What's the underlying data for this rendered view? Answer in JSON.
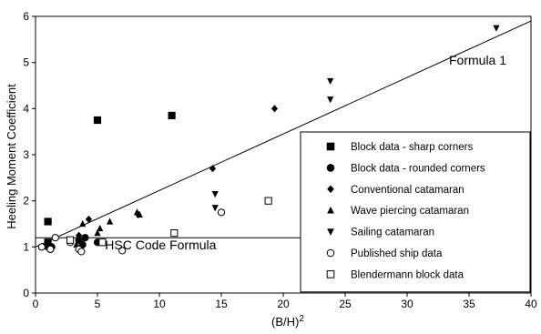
{
  "chart_data": {
    "type": "scatter",
    "title": "",
    "xlabel": "(B/H)",
    "xlabel_superscript": "2",
    "ylabel": "Heeling Moment Coefficient",
    "xlim": [
      0,
      40
    ],
    "ylim": [
      0,
      6
    ],
    "x_ticks": [
      "0",
      "5",
      "10",
      "15",
      "20",
      "25",
      "30",
      "35",
      "40"
    ],
    "y_ticks": [
      "0",
      "1",
      "2",
      "3",
      "4",
      "5",
      "6"
    ],
    "grid": false,
    "legend_position": "bottom-right",
    "series": [
      {
        "name": "Block data - sharp corners",
        "marker": "square-filled",
        "points": [
          [
            1.0,
            1.55
          ],
          [
            1.0,
            1.1
          ],
          [
            5.0,
            3.75
          ],
          [
            11.0,
            3.85
          ]
        ]
      },
      {
        "name": "Block data - rounded corners",
        "marker": "circle-filled",
        "points": [
          [
            1.0,
            1.0
          ],
          [
            1.0,
            1.05
          ],
          [
            1.2,
            0.95
          ],
          [
            1.3,
            1.0
          ],
          [
            3.5,
            1.15
          ],
          [
            3.8,
            1.05
          ],
          [
            4.0,
            1.2
          ],
          [
            5.0,
            1.1
          ]
        ]
      },
      {
        "name": "Conventional catamaran",
        "marker": "diamond-filled",
        "points": [
          [
            3.5,
            1.25
          ],
          [
            4.3,
            1.6
          ],
          [
            8.3,
            1.7
          ],
          [
            14.3,
            2.7
          ],
          [
            19.3,
            4.0
          ]
        ]
      },
      {
        "name": "Wave piercing catamaran",
        "marker": "triangle-up-filled",
        "points": [
          [
            3.3,
            1.05
          ],
          [
            3.8,
            1.5
          ],
          [
            5.0,
            1.3
          ],
          [
            5.2,
            1.4
          ],
          [
            6.0,
            1.55
          ],
          [
            8.2,
            1.75
          ],
          [
            8.4,
            1.7
          ]
        ]
      },
      {
        "name": "Sailing catamaran",
        "marker": "triangle-down-filled",
        "points": [
          [
            14.5,
            2.15
          ],
          [
            14.5,
            1.85
          ],
          [
            23.8,
            4.6
          ],
          [
            23.8,
            4.2
          ],
          [
            37.2,
            5.75
          ]
        ]
      },
      {
        "name": "Published ship data",
        "marker": "circle-open",
        "points": [
          [
            0.5,
            1.0
          ],
          [
            1.2,
            0.95
          ],
          [
            1.6,
            1.2
          ],
          [
            2.8,
            1.1
          ],
          [
            3.5,
            0.95
          ],
          [
            3.7,
            0.9
          ],
          [
            7.0,
            0.92
          ],
          [
            15.0,
            1.75
          ]
        ]
      },
      {
        "name": "Blendermann block data",
        "marker": "square-open",
        "points": [
          [
            2.8,
            1.15
          ],
          [
            5.4,
            1.1
          ],
          [
            11.2,
            1.3
          ],
          [
            18.8,
            2.0
          ]
        ]
      }
    ],
    "lines": [
      {
        "name": "Formula 1",
        "x": [
          0,
          40
        ],
        "y": [
          1.0,
          5.9
        ]
      },
      {
        "name": "HSC Code Formula",
        "x": [
          0,
          40
        ],
        "y": [
          1.2,
          1.2
        ]
      }
    ],
    "annotations": [
      {
        "text": "Formula 1",
        "x": 35.7,
        "y": 4.95
      },
      {
        "text": "HSC Code Formula",
        "x": 10.1,
        "y": 0.95
      }
    ]
  }
}
